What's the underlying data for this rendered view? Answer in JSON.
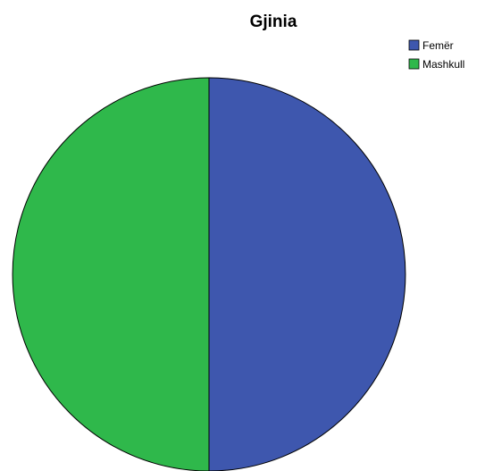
{
  "chart_data": {
    "type": "pie",
    "title": "Gjinia",
    "categories": [
      "Femër",
      "Mashkull"
    ],
    "values": [
      50,
      50
    ],
    "colors": [
      "#3e57ae",
      "#2fb84b"
    ],
    "legend": {
      "placement": "top-right",
      "entries": [
        "Femër",
        "Mashkull"
      ]
    },
    "start_angle_deg": 0,
    "direction": "clockwise"
  }
}
